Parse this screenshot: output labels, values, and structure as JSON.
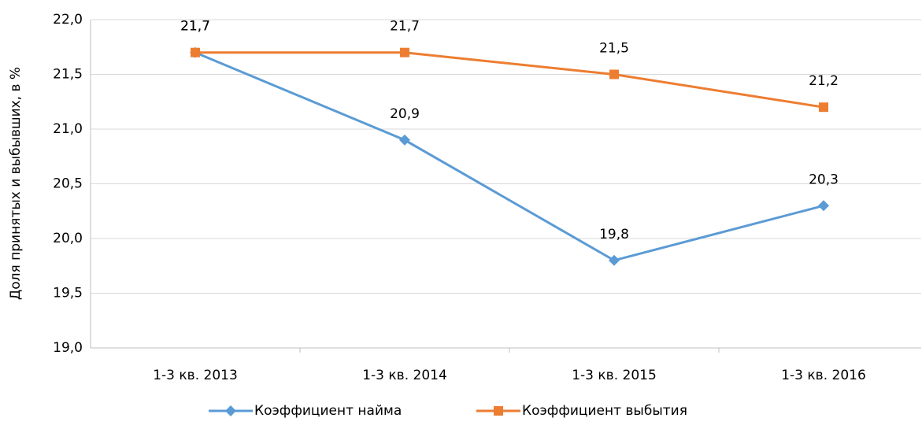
{
  "chart_data": {
    "type": "line",
    "y_label": "Доля принятых и выбывших, в %",
    "categories": [
      "1-3 кв. 2013",
      "1-3 кв. 2014",
      "1-3 кв. 2015",
      "1-3 кв. 2016"
    ],
    "series": [
      {
        "name": "Коэффициент найма",
        "color": "#5b9bd5",
        "marker": "diamond",
        "values": [
          21.7,
          20.9,
          19.8,
          20.3
        ],
        "value_labels": [
          "21,7",
          "20,9",
          "19,8",
          "20,3"
        ]
      },
      {
        "name": "Коэффициент выбытия",
        "color": "#ed7d31",
        "marker": "square",
        "values": [
          21.7,
          21.7,
          21.5,
          21.2
        ],
        "value_labels": [
          "21,7",
          "21,7",
          "21,5",
          "21,2"
        ]
      }
    ],
    "ylim": [
      19,
      22
    ],
    "yticks": [
      {
        "value": 19,
        "label": "19,0"
      },
      {
        "value": 19.5,
        "label": "19,5"
      },
      {
        "value": 20,
        "label": "20,0"
      },
      {
        "value": 20.5,
        "label": "20,5"
      },
      {
        "value": 21,
        "label": "21,0"
      },
      {
        "value": 21.5,
        "label": "21,5"
      },
      {
        "value": 22,
        "label": "22,0"
      }
    ],
    "grid": true,
    "legend": "bottom"
  }
}
